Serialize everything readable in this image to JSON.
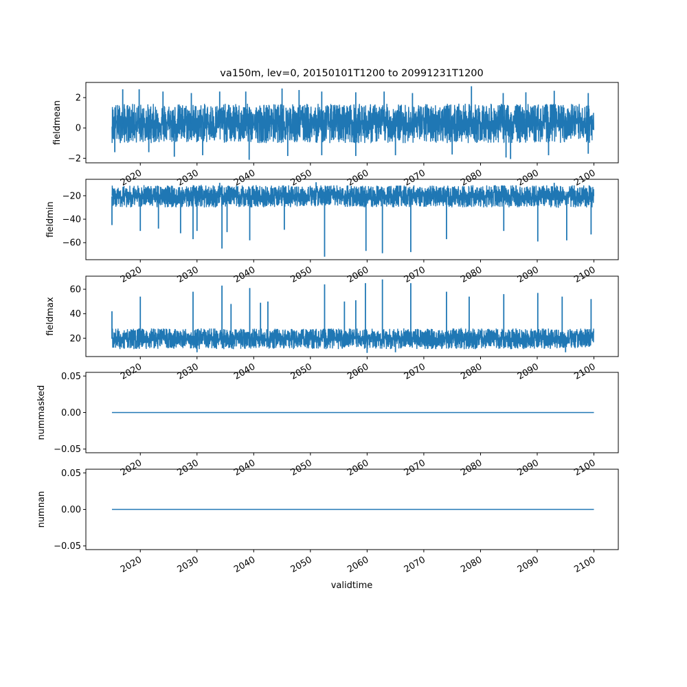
{
  "chart_data": {
    "type": "line",
    "title": "va150m, lev=0, 20150101T1200 to 20991231T1200",
    "xlabel": "validtime",
    "x_range": [
      2015.0,
      2100.0
    ],
    "xlim": [
      2010.4,
      2104.3
    ],
    "x_ticks": [
      2020,
      2030,
      2040,
      2050,
      2060,
      2070,
      2080,
      2090,
      2100
    ],
    "x_tick_labels": [
      "2020",
      "2030",
      "2040",
      "2050",
      "2060",
      "2070",
      "2080",
      "2090",
      "2100"
    ],
    "line_color": "#1f77b4",
    "grid": false,
    "panels": [
      {
        "ylabel": "fieldmean",
        "ylim": [
          -2.3,
          3.0
        ],
        "y_ticks": [
          -2,
          0,
          2
        ],
        "y_tick_labels": [
          "−2",
          "0",
          "2"
        ],
        "typical_range": [
          -1.0,
          1.6
        ],
        "peaks_high": [
          [
            2016.9,
            2.55
          ],
          [
            2019.8,
            2.55
          ],
          [
            2024,
            2.4
          ],
          [
            2029,
            2.3
          ],
          [
            2034,
            2.4
          ],
          [
            2038.6,
            2.4
          ],
          [
            2045,
            2.6
          ],
          [
            2048,
            2.5
          ],
          [
            2052,
            2.4
          ],
          [
            2058,
            2.35
          ],
          [
            2063,
            2.4
          ],
          [
            2068,
            2.3
          ],
          [
            2078.4,
            2.75
          ],
          [
            2084,
            2.3
          ],
          [
            2088,
            2.35
          ],
          [
            2093,
            2.45
          ],
          [
            2099,
            2.3
          ]
        ],
        "peaks_low": [
          [
            2015.5,
            -1.6
          ],
          [
            2021.5,
            -1.6
          ],
          [
            2026,
            -1.9
          ],
          [
            2031,
            -1.8
          ],
          [
            2039.2,
            -2.1
          ],
          [
            2046,
            -1.85
          ],
          [
            2052,
            -1.8
          ],
          [
            2058,
            -1.85
          ],
          [
            2065,
            -1.8
          ],
          [
            2075,
            -1.75
          ],
          [
            2084.5,
            -1.95
          ],
          [
            2085.3,
            -2.05
          ],
          [
            2092,
            -1.8
          ],
          [
            2099,
            -1.7
          ]
        ]
      },
      {
        "ylabel": "fieldmin",
        "ylim": [
          -74.5,
          -6.0
        ],
        "y_ticks": [
          -60,
          -40,
          -20
        ],
        "y_tick_labels": [
          "−60",
          "−40",
          "−20"
        ],
        "typical_range": [
          -30,
          -11
        ],
        "peaks_high": [
          [
            2034,
            -9
          ],
          [
            2051,
            -8.5
          ],
          [
            2093,
            -9
          ]
        ],
        "peaks_low": [
          [
            2015,
            -45
          ],
          [
            2020,
            -50
          ],
          [
            2023.2,
            -48
          ],
          [
            2027.1,
            -52
          ],
          [
            2029.3,
            -57
          ],
          [
            2030,
            -50
          ],
          [
            2034.4,
            -65
          ],
          [
            2035.3,
            -51
          ],
          [
            2039.3,
            -58
          ],
          [
            2045.4,
            -49
          ],
          [
            2052.5,
            -72
          ],
          [
            2059.8,
            -67
          ],
          [
            2062.7,
            -69
          ],
          [
            2067.7,
            -68
          ],
          [
            2074,
            -57
          ],
          [
            2084.1,
            -50
          ],
          [
            2090.1,
            -59
          ],
          [
            2095.2,
            -58
          ],
          [
            2099.5,
            -53
          ]
        ]
      },
      {
        "ylabel": "fieldmax",
        "ylim": [
          5.0,
          70.7
        ],
        "y_ticks": [
          20,
          40,
          60
        ],
        "y_tick_labels": [
          "20",
          "40",
          "60"
        ],
        "typical_range": [
          11,
          28
        ],
        "peaks_high": [
          [
            2015,
            42
          ],
          [
            2020,
            54
          ],
          [
            2029.3,
            58
          ],
          [
            2034.4,
            63
          ],
          [
            2036,
            48
          ],
          [
            2039.3,
            61
          ],
          [
            2041.2,
            49
          ],
          [
            2042.5,
            50
          ],
          [
            2052.5,
            64
          ],
          [
            2056,
            50
          ],
          [
            2058,
            51
          ],
          [
            2059.7,
            65
          ],
          [
            2062.7,
            68
          ],
          [
            2067.7,
            65
          ],
          [
            2074,
            58
          ],
          [
            2078,
            54
          ],
          [
            2084.1,
            56
          ],
          [
            2090.1,
            57
          ],
          [
            2094.4,
            54
          ],
          [
            2099.5,
            52
          ]
        ],
        "peaks_low": [
          [
            2030,
            8.5
          ],
          [
            2060,
            8
          ],
          [
            2065,
            8.5
          ],
          [
            2095,
            8.5
          ]
        ]
      },
      {
        "ylabel": "nummasked",
        "ylim": [
          -0.055,
          0.055
        ],
        "y_ticks": [
          -0.05,
          0.0,
          0.05
        ],
        "y_tick_labels": [
          "−0.05",
          "0.00",
          "0.05"
        ],
        "constant": 0.0
      },
      {
        "ylabel": "numnan",
        "ylim": [
          -0.055,
          0.055
        ],
        "y_ticks": [
          -0.05,
          0.0,
          0.05
        ],
        "y_tick_labels": [
          "−0.05",
          "0.00",
          "0.05"
        ],
        "constant": 0.0
      }
    ]
  }
}
